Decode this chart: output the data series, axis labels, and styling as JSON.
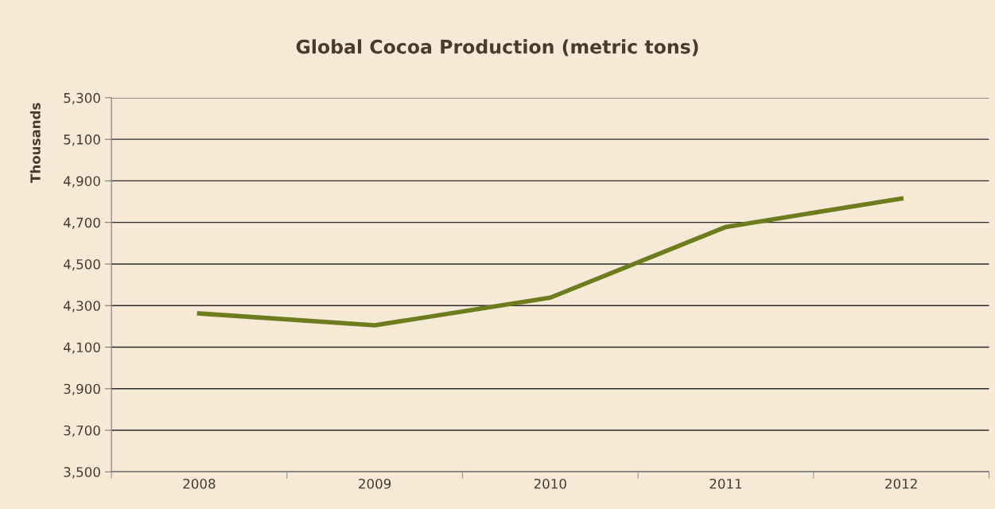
{
  "chart_data": {
    "type": "line",
    "title": "Global Cocoa Production (metric tons)",
    "ylabel": "Thousands",
    "categories": [
      "2008",
      "2009",
      "2010",
      "2011",
      "2012"
    ],
    "series": [
      {
        "color": "#6b7d1c",
        "values": [
          4262,
          4205,
          4338,
          4678,
          4815
        ]
      }
    ],
    "ylim": [
      3500,
      5300
    ],
    "yticks": [
      {
        "value": 3500,
        "label": "3,500"
      },
      {
        "value": 3700,
        "label": "3,700"
      },
      {
        "value": 3900,
        "label": "3,900"
      },
      {
        "value": 4100,
        "label": "4,100"
      },
      {
        "value": 4300,
        "label": "4,300"
      },
      {
        "value": 4500,
        "label": "4,500"
      },
      {
        "value": 4700,
        "label": "4,700"
      },
      {
        "value": 4900,
        "label": "4,900"
      },
      {
        "value": 5100,
        "label": "5,100"
      },
      {
        "value": 5300,
        "label": "5,300"
      }
    ],
    "grid": "y",
    "legend": false,
    "marker": "none",
    "line_style": "solid"
  }
}
